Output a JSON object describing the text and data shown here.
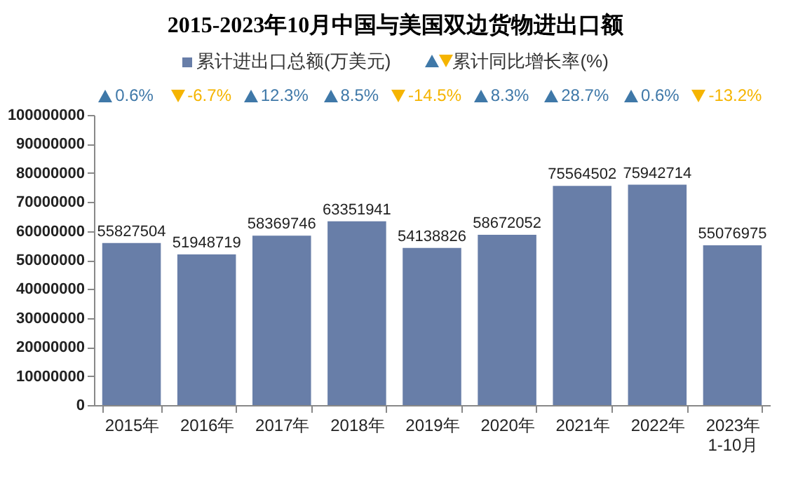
{
  "chart_data": {
    "type": "bar",
    "title": "2015-2023年10月中国与美国双边货物进出口额",
    "categories": [
      "2015年",
      "2016年",
      "2017年",
      "2018年",
      "2019年",
      "2020年",
      "2021年",
      "2022年",
      "2023年\n1-10月"
    ],
    "series": [
      {
        "name": "累计进出口总额(万美元)",
        "color": "#687ea8",
        "values": [
          55827504,
          51948719,
          58369746,
          63351941,
          54138826,
          58672052,
          75564502,
          75942714,
          55076975
        ]
      }
    ],
    "annotations": [
      "累计同比增长率(%)",
      "0.6%",
      "-6.7%",
      "12.3%",
      "8.5%",
      "-14.5%",
      "8.3%",
      "28.7%",
      "0.6%",
      "-13.2%"
    ],
    "data_labels": true,
    "legend": "top",
    "ylim": [
      0,
      100000000
    ],
    "yticks": [
      0,
      10000000,
      20000000,
      30000000,
      40000000,
      50000000,
      60000000,
      70000000,
      80000000,
      90000000,
      100000000
    ]
  }
}
